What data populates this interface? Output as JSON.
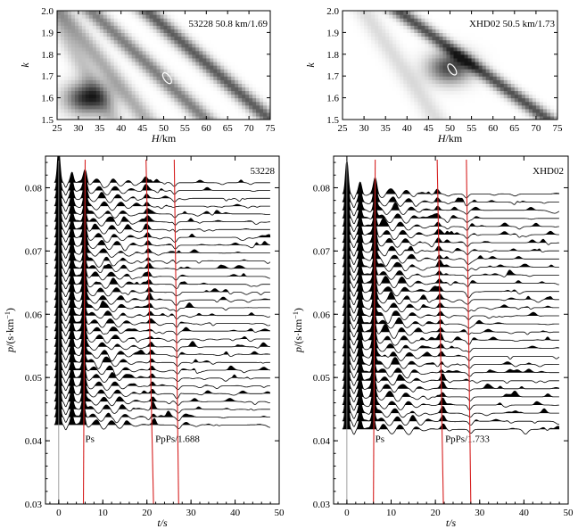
{
  "chart_data": [
    {
      "type": "heatmap",
      "xlabel_italic": "H",
      "xlabel_unit": "/km",
      "ylabel": "k",
      "xlim": [
        25,
        75
      ],
      "ylim": [
        1.5,
        2.0
      ],
      "xticks": [
        "25",
        "30",
        "35",
        "40",
        "45",
        "50",
        "55",
        "60",
        "65",
        "70",
        "75"
      ],
      "yticks": [
        "1.5",
        "1.6",
        "1.7",
        "1.8",
        "1.9",
        "2.0"
      ],
      "annotation": "53228 50.8 km/1.69",
      "best_fit": {
        "H": 50.8,
        "k": 1.69
      },
      "bands": [
        {
          "H_at_k15": 46,
          "H_at_k20": 26,
          "strength": 0.35
        },
        {
          "H_at_k15": 60,
          "H_at_k20": 33,
          "strength": 0.55
        },
        {
          "H_at_k15": 75,
          "H_at_k20": 46,
          "strength": 0.7
        },
        {
          "H_at_k15": 38,
          "H_at_k20": 24,
          "strength": 0.25
        }
      ],
      "hotspot": {
        "H": 32,
        "k": 1.6,
        "strength": 0.9
      }
    },
    {
      "type": "heatmap",
      "xlabel_italic": "H",
      "xlabel_unit": "/km",
      "ylabel": "k",
      "xlim": [
        25,
        75
      ],
      "ylim": [
        1.5,
        2.0
      ],
      "xticks": [
        "25",
        "30",
        "35",
        "40",
        "45",
        "50",
        "55",
        "60",
        "65",
        "70",
        "75"
      ],
      "yticks": [
        "1.5",
        "1.6",
        "1.7",
        "1.8",
        "1.9",
        "2.0"
      ],
      "annotation": "XHD02 50.5 km/1.73",
      "best_fit": {
        "H": 50.5,
        "k": 1.73
      },
      "bands": [
        {
          "H_at_k15": 73,
          "H_at_k20": 38,
          "strength": 0.75
        },
        {
          "H_at_k15": 47,
          "H_at_k20": 30,
          "strength": 0.15
        }
      ],
      "hotspot": {
        "H": 50,
        "k": 1.74,
        "strength": 0.8
      }
    },
    {
      "type": "line",
      "xlabel": "t/s",
      "ylabel_italic": "p",
      "ylabel_unit": "/(s·km",
      "xlim": [
        -3,
        50
      ],
      "ylim": [
        0.03,
        0.085
      ],
      "xticks": [
        "0",
        "10",
        "20",
        "30",
        "40",
        "50"
      ],
      "yticks": [
        "0.03",
        "0.04",
        "0.05",
        "0.06",
        "0.07",
        "0.08"
      ],
      "station": "53228",
      "trace_p_start": 0.0425,
      "trace_p_end": 0.0808,
      "trace_count": 32,
      "phases": [
        {
          "label": "Ps",
          "t_top": 6.0,
          "t_bottom": 5.6
        },
        {
          "label": "PpPs/1.688",
          "t_top": 19.8,
          "t_bottom": 21.5
        },
        {
          "label": "",
          "t_top": 26.2,
          "t_bottom": 27.2
        }
      ],
      "phase_label_p": 0.0395
    },
    {
      "type": "line",
      "xlabel": "t/s",
      "ylabel_italic": "p",
      "ylabel_unit": "/(s·km",
      "xlim": [
        -3,
        50
      ],
      "ylim": [
        0.03,
        0.085
      ],
      "xticks": [
        "0",
        "10",
        "20",
        "30",
        "40",
        "50"
      ],
      "yticks": [
        "0.03",
        "0.04",
        "0.05",
        "0.06",
        "0.07",
        "0.08"
      ],
      "station": "XHD02",
      "trace_p_start": 0.0418,
      "trace_p_end": 0.079,
      "trace_count": 30,
      "phases": [
        {
          "label": "Ps",
          "t_top": 6.4,
          "t_bottom": 6.0
        },
        {
          "label": "PpPs/1.733",
          "t_top": 20.4,
          "t_bottom": 21.8
        },
        {
          "label": "",
          "t_top": 27.0,
          "t_bottom": 28.0
        }
      ],
      "phase_label_p": 0.0395
    }
  ]
}
